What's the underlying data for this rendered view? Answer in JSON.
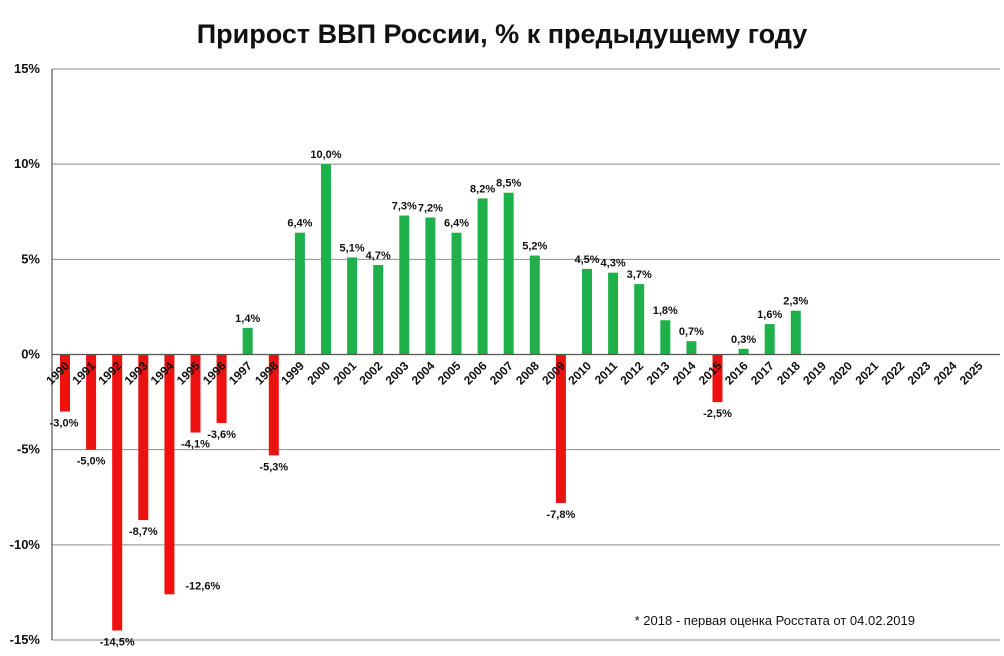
{
  "chart_data": {
    "type": "bar",
    "title": "Прирост ВВП России, % к предыдущему году",
    "categories": [
      "1990",
      "1991",
      "1992",
      "1993",
      "1994",
      "1995",
      "1996",
      "1997",
      "1998",
      "1999",
      "2000",
      "2001",
      "2002",
      "2003",
      "2004",
      "2005",
      "2006",
      "2007",
      "2008",
      "2009",
      "2010",
      "2011",
      "2012",
      "2013",
      "2014",
      "2015",
      "2016",
      "2017",
      "2018",
      "2019",
      "2020",
      "2021",
      "2022",
      "2023",
      "2024",
      "2025"
    ],
    "values": [
      -3.0,
      -5.0,
      -14.5,
      -8.7,
      -12.6,
      -4.1,
      -3.6,
      1.4,
      -5.3,
      6.4,
      10.0,
      5.1,
      4.7,
      7.3,
      7.2,
      6.4,
      8.2,
      8.5,
      5.2,
      -7.8,
      4.5,
      4.3,
      3.7,
      1.8,
      0.7,
      -2.5,
      0.3,
      1.6,
      2.3,
      null,
      null,
      null,
      null,
      null,
      null,
      null
    ],
    "data_labels": [
      "-3,0%",
      "-5,0%",
      "-14,5%",
      "-8,7%",
      "-12,6%",
      "-4,1%",
      "-3,6%",
      "1,4%",
      "-5,3%",
      "6,4%",
      "10,0%",
      "5,1%",
      "4,7%",
      "7,3%",
      "7,2%",
      "6,4%",
      "8,2%",
      "8,5%",
      "5,2%",
      "-7,8%",
      "4,5%",
      "4,3%",
      "3,7%",
      "1,8%",
      "0,7%",
      "-2,5%",
      "0,3%",
      "1,6%",
      "2,3%",
      "",
      "",
      "",
      "",
      "",
      "",
      ""
    ],
    "ylim": [
      -15,
      15
    ],
    "yticks": [
      15,
      10,
      5,
      0,
      -5,
      -10,
      -15
    ],
    "ytick_labels": [
      "15%",
      "10%",
      "5%",
      "0%",
      "-5%",
      "-10%",
      "-15%"
    ],
    "grid": true,
    "colors": {
      "positive": "#1db04b",
      "negative": "#ee1111"
    },
    "annotation": "* 2018 - первая оценка Росстата от 04.02.2019"
  }
}
